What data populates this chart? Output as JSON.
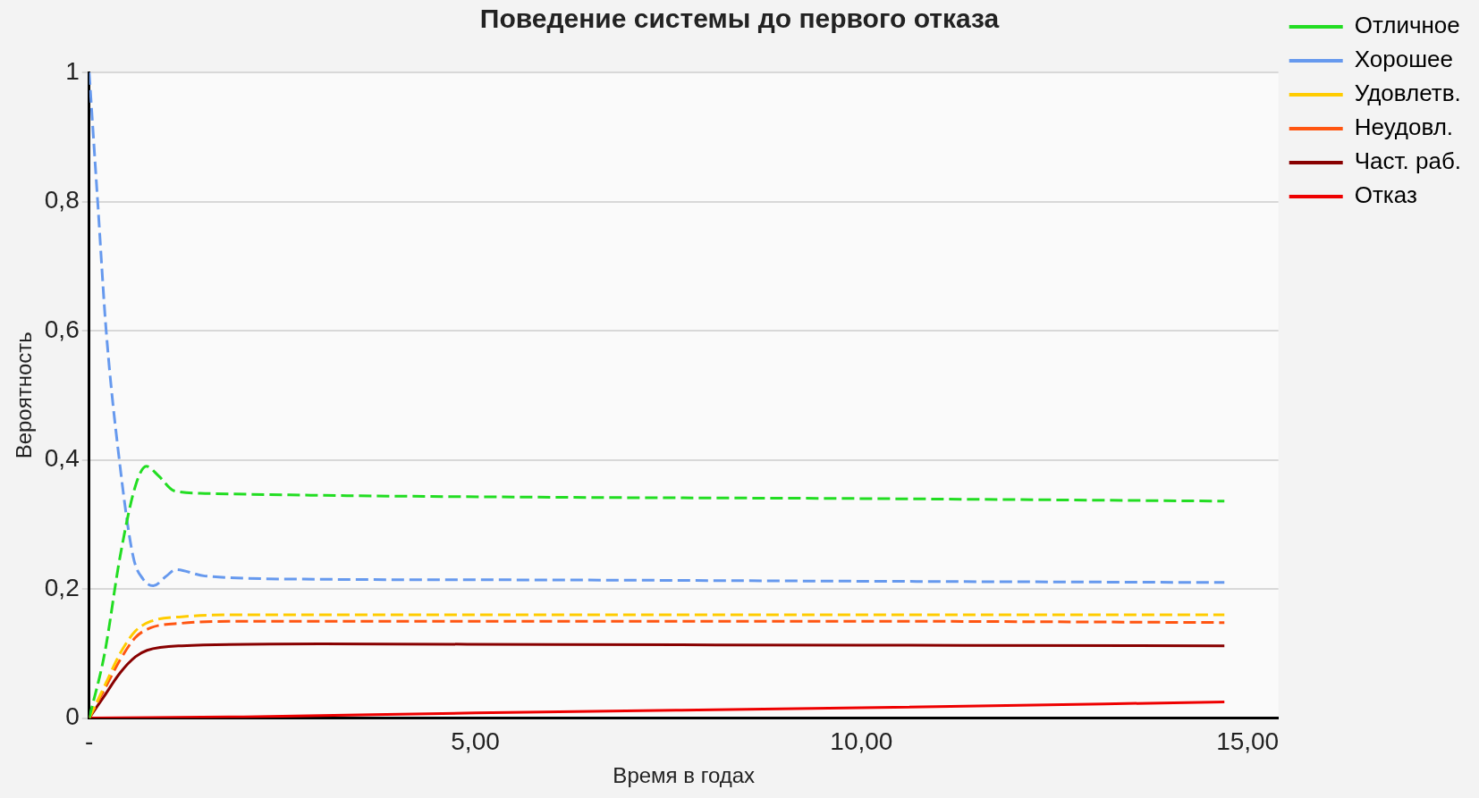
{
  "chart_data": {
    "type": "line",
    "title": "Поведение системы до первого отказа",
    "xlabel": "Время в годах",
    "ylabel": "Вероятность",
    "xlim": [
      0,
      15.4
    ],
    "xticks": [
      {
        "value": 0,
        "label": "-"
      },
      {
        "value": 5,
        "label": "5,00"
      },
      {
        "value": 10,
        "label": "10,00"
      },
      {
        "value": 15,
        "label": "15,00"
      }
    ],
    "ylim": [
      0,
      1
    ],
    "yticks": [
      0,
      {
        "value": 0.2,
        "label": "0,2"
      },
      {
        "value": 0.4,
        "label": "0,4"
      },
      {
        "value": 0.6,
        "label": "0,6"
      },
      {
        "value": 0.8,
        "label": "0,8"
      },
      1
    ],
    "grid": "y",
    "legend": "top right",
    "marker": "none",
    "series": [
      {
        "name": "Отличное",
        "color": "#22dd22",
        "line_style": "dashed",
        "x": [
          0,
          0.2,
          0.4,
          0.6,
          0.74,
          0.9,
          1.1,
          1.5,
          3,
          6,
          10,
          14.7
        ],
        "values": [
          0,
          0.1,
          0.25,
          0.36,
          0.39,
          0.375,
          0.352,
          0.348,
          0.345,
          0.342,
          0.34,
          0.336
        ]
      },
      {
        "name": "Хорошее",
        "color": "#6699ee",
        "line_style": "dashed",
        "x": [
          0,
          0.11,
          0.22,
          0.39,
          0.57,
          0.7,
          0.83,
          1,
          1.12,
          1.5,
          3,
          6,
          10,
          14.7
        ],
        "values": [
          1,
          0.8,
          0.6,
          0.4,
          0.25,
          0.215,
          0.205,
          0.22,
          0.23,
          0.22,
          0.215,
          0.214,
          0.212,
          0.21
        ]
      },
      {
        "name": "Удовлетв.",
        "color": "#ffcc00",
        "line_style": "dashed",
        "x": [
          0,
          0.2,
          0.4,
          0.6,
          0.8,
          1.2,
          2,
          6,
          10,
          14.7
        ],
        "values": [
          0,
          0.05,
          0.1,
          0.135,
          0.15,
          0.157,
          0.16,
          0.16,
          0.16,
          0.16
        ]
      },
      {
        "name": "Неудовл.",
        "color": "#ff5511",
        "line_style": "dashed",
        "x": [
          0,
          0.2,
          0.4,
          0.6,
          0.8,
          1.2,
          2,
          6,
          10,
          14.7
        ],
        "values": [
          0,
          0.045,
          0.09,
          0.125,
          0.14,
          0.147,
          0.15,
          0.15,
          0.15,
          0.148
        ]
      },
      {
        "name": "Част. раб.",
        "color": "#880000",
        "line_style": "solid",
        "x": [
          0,
          0.2,
          0.4,
          0.6,
          0.75,
          1.2,
          3,
          6,
          10,
          14.7
        ],
        "values": [
          0,
          0.035,
          0.07,
          0.095,
          0.105,
          0.112,
          0.115,
          0.114,
          0.113,
          0.112
        ]
      },
      {
        "name": "Отказ",
        "color": "#ee0000",
        "line_style": "solid",
        "x": [
          0,
          2,
          5,
          10,
          14.7
        ],
        "values": [
          0,
          0.002,
          0.008,
          0.016,
          0.025
        ]
      }
    ]
  }
}
